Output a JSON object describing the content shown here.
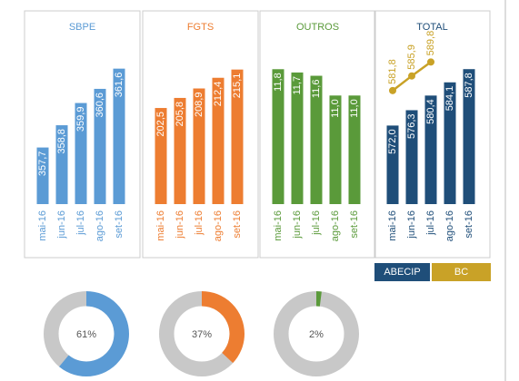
{
  "chart_data": [
    {
      "type": "bar",
      "title": "SBPE",
      "color": "#5b9bd5",
      "categories": [
        "mai-16",
        "jun-16",
        "jul-16",
        "ago-16",
        "set-16"
      ],
      "values": [
        357.7,
        358.8,
        359.9,
        360.6,
        361.6
      ],
      "value_labels": [
        "357,7",
        "358,8",
        "359,9",
        "360,6",
        "361,6"
      ],
      "ylim": [
        354.9,
        363.2
      ]
    },
    {
      "type": "bar",
      "title": "FGTS",
      "color": "#ed7d31",
      "categories": [
        "mai-16",
        "jun-16",
        "jul-16",
        "ago-16",
        "set-16"
      ],
      "values": [
        202.5,
        205.8,
        208.9,
        212.4,
        215.1
      ],
      "value_labels": [
        "202,5",
        "205,8",
        "208,9",
        "212,4",
        "215,1"
      ],
      "ylim": [
        171,
        226
      ]
    },
    {
      "type": "bar",
      "title": "OUTROS",
      "color": "#5a9a3a",
      "categories": [
        "mai-16",
        "jun-16",
        "jul-16",
        "ago-16",
        "set-16"
      ],
      "values": [
        11.8,
        11.7,
        11.6,
        11.0,
        11.0
      ],
      "value_labels": [
        "11,8",
        "11,7",
        "11,6",
        "11,0",
        "11,0"
      ],
      "ylim": [
        7.7,
        12.8
      ]
    },
    {
      "type": "bar_line",
      "title": "TOTAL",
      "categories": [
        "mai-16",
        "jun-16",
        "jul-16",
        "ago-16",
        "set-16"
      ],
      "ylim": [
        550,
        597
      ],
      "series": [
        {
          "name": "ABECIP",
          "color": "#1f4e79",
          "values": [
            572.0,
            576.3,
            580.4,
            584.1,
            587.8
          ],
          "value_labels": [
            "572,0",
            "576,3",
            "580,4",
            "584,1",
            "587,8"
          ]
        },
        {
          "name": "BC",
          "color": "#c9a227",
          "values": [
            581.8,
            585.9,
            589.8,
            null,
            null
          ],
          "value_labels": [
            "581,8",
            "585,9",
            "589,8",
            null,
            null
          ]
        }
      ]
    },
    {
      "type": "donut",
      "value": 61,
      "value_label": "61%",
      "color": "#5b9bd5"
    },
    {
      "type": "donut",
      "value": 37,
      "value_label": "37%",
      "color": "#ed7d31"
    },
    {
      "type": "donut",
      "value": 2,
      "value_label": "2%",
      "color": "#5a9a3a"
    }
  ]
}
